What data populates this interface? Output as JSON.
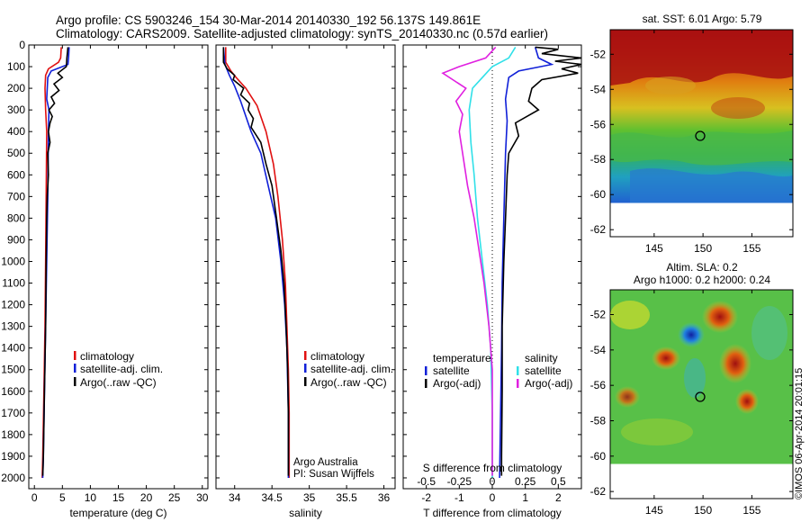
{
  "header": {
    "line1": "Argo profile: CS 5903246_154 30-Mar-2014 20140330_192 56.137S 149.861E",
    "line2": "Climatology: CARS2009. Satellite-adjusted climatology: synTS_20140330.nc (0.57d earlier)"
  },
  "colors": {
    "climatology": "#e01010",
    "satellite": "#1020d8",
    "argo": "#000000",
    "sal_satellite": "#30e0e8",
    "sal_argo": "#e020e0"
  },
  "chart_data": [
    {
      "id": "temperature",
      "type": "line",
      "xlabel": "temperature (deg C)",
      "xlim": [
        -1,
        31
      ],
      "xticks": [
        0,
        5,
        10,
        15,
        20,
        25,
        30
      ],
      "ylim": [
        2050,
        0
      ],
      "yticks": [
        0,
        100,
        200,
        300,
        400,
        500,
        600,
        700,
        800,
        900,
        1000,
        1100,
        1200,
        1300,
        1400,
        1500,
        1600,
        1700,
        1800,
        1900,
        2000
      ],
      "legend": [
        "climatology",
        "satellite-adj. clim.",
        "Argo(..raw -QC)"
      ],
      "series": [
        {
          "name": "climatology",
          "color": "#e01010",
          "points": [
            [
              4.8,
              10
            ],
            [
              4.7,
              60
            ],
            [
              4.3,
              80
            ],
            [
              2.5,
              110
            ],
            [
              2.0,
              140
            ],
            [
              1.9,
              200
            ],
            [
              2.0,
              300
            ],
            [
              2.2,
              400
            ],
            [
              2.1,
              700
            ],
            [
              2.0,
              1000
            ],
            [
              1.9,
              1300
            ],
            [
              1.7,
              1600
            ],
            [
              1.5,
              1900
            ],
            [
              1.4,
              2000
            ]
          ]
        },
        {
          "name": "satellite-adj. clim.",
          "color": "#1020d8",
          "points": [
            [
              6.2,
              10
            ],
            [
              6.1,
              60
            ],
            [
              6.0,
              90
            ],
            [
              3.0,
              120
            ],
            [
              2.4,
              150
            ],
            [
              2.2,
              250
            ],
            [
              2.6,
              300
            ],
            [
              2.5,
              400
            ],
            [
              2.4,
              700
            ],
            [
              2.2,
              1000
            ],
            [
              2.0,
              1300
            ],
            [
              1.8,
              1600
            ],
            [
              1.6,
              1900
            ],
            [
              1.5,
              2000
            ]
          ]
        },
        {
          "name": "Argo(..raw -QC)",
          "color": "#000000",
          "points": [
            [
              6.0,
              10
            ],
            [
              5.8,
              60
            ],
            [
              5.7,
              100
            ],
            [
              4.2,
              130
            ],
            [
              5.0,
              150
            ],
            [
              3.5,
              180
            ],
            [
              4.4,
              210
            ],
            [
              3.0,
              240
            ],
            [
              3.6,
              270
            ],
            [
              2.6,
              300
            ],
            [
              3.2,
              330
            ],
            [
              2.8,
              360
            ],
            [
              2.5,
              400
            ],
            [
              2.8,
              450
            ],
            [
              2.4,
              500
            ],
            [
              2.5,
              600
            ],
            [
              2.3,
              700
            ],
            [
              2.2,
              800
            ],
            [
              2.1,
              1000
            ],
            [
              2.0,
              1300
            ],
            [
              1.8,
              1600
            ],
            [
              1.6,
              1900
            ],
            [
              1.5,
              1990
            ]
          ]
        }
      ]
    },
    {
      "id": "salinity",
      "type": "line",
      "xlabel": "salinity",
      "xlim": [
        33.75,
        36.15
      ],
      "xticks": [
        34,
        34.5,
        35,
        35.5,
        36
      ],
      "ylim": [
        2050,
        0
      ],
      "legend": [
        "climatology",
        "satellite-adj. clim.",
        "Argo(..raw -QC)"
      ],
      "annotation": [
        "Argo Australia",
        "PI: Susan Wijffels"
      ],
      "series": [
        {
          "name": "climatology",
          "color": "#e01010",
          "points": [
            [
              33.88,
              10
            ],
            [
              33.88,
              80
            ],
            [
              33.95,
              120
            ],
            [
              34.02,
              150
            ],
            [
              34.15,
              200
            ],
            [
              34.3,
              280
            ],
            [
              34.42,
              400
            ],
            [
              34.52,
              550
            ],
            [
              34.58,
              700
            ],
            [
              34.64,
              900
            ],
            [
              34.68,
              1100
            ],
            [
              34.7,
              1300
            ],
            [
              34.72,
              1500
            ],
            [
              34.73,
              1700
            ],
            [
              34.73,
              2000
            ]
          ]
        },
        {
          "name": "satellite-adj. clim.",
          "color": "#1020d8",
          "points": [
            [
              33.85,
              10
            ],
            [
              33.87,
              90
            ],
            [
              33.93,
              140
            ],
            [
              34.0,
              190
            ],
            [
              34.08,
              260
            ],
            [
              34.15,
              330
            ],
            [
              34.22,
              400
            ],
            [
              34.35,
              500
            ],
            [
              34.45,
              650
            ],
            [
              34.55,
              800
            ],
            [
              34.62,
              1000
            ],
            [
              34.67,
              1200
            ],
            [
              34.7,
              1400
            ],
            [
              34.72,
              1700
            ],
            [
              34.72,
              2000
            ]
          ]
        },
        {
          "name": "Argo(..raw -QC)",
          "color": "#000000",
          "points": [
            [
              33.85,
              10
            ],
            [
              33.85,
              80
            ],
            [
              33.9,
              110
            ],
            [
              34.0,
              140
            ],
            [
              33.98,
              160
            ],
            [
              34.12,
              200
            ],
            [
              34.08,
              230
            ],
            [
              34.2,
              270
            ],
            [
              34.18,
              300
            ],
            [
              34.25,
              340
            ],
            [
              34.22,
              380
            ],
            [
              34.35,
              450
            ],
            [
              34.42,
              550
            ],
            [
              34.5,
              650
            ],
            [
              34.56,
              800
            ],
            [
              34.62,
              950
            ],
            [
              34.66,
              1100
            ],
            [
              34.69,
              1300
            ],
            [
              34.71,
              1500
            ],
            [
              34.72,
              1700
            ],
            [
              34.72,
              1990
            ]
          ]
        }
      ]
    },
    {
      "id": "difference",
      "type": "line",
      "xlabel": "T difference from climatology",
      "xlabel_top": "S difference from climatology",
      "xlim": [
        -2.7,
        2.7
      ],
      "xticks": [
        -2,
        -1,
        0,
        1,
        2
      ],
      "xticks_top": [
        "-0.5",
        "-0.25",
        "0",
        "0.25",
        "0.5"
      ],
      "xticks_top_pos": [
        -2,
        -1,
        0,
        1,
        2
      ],
      "ylim": [
        2050,
        0
      ],
      "legend_headers": [
        "temperature",
        "salinity"
      ],
      "legend": [
        [
          "satellite",
          "Argo(-adj)"
        ],
        [
          "satellite",
          "Argo(-adj)"
        ]
      ],
      "series": [
        {
          "name": "satellite",
          "group": "temperature",
          "color": "#1020d8",
          "points": [
            [
              1.3,
              10
            ],
            [
              1.4,
              60
            ],
            [
              1.8,
              90
            ],
            [
              0.8,
              120
            ],
            [
              0.5,
              150
            ],
            [
              0.4,
              250
            ],
            [
              0.45,
              350
            ],
            [
              0.4,
              500
            ],
            [
              0.35,
              800
            ],
            [
              0.3,
              1100
            ],
            [
              0.28,
              1400
            ],
            [
              0.25,
              1700
            ],
            [
              0.22,
              2000
            ]
          ]
        },
        {
          "name": "Argo(-adj)",
          "group": "temperature",
          "color": "#000000",
          "points": [
            [
              1.3,
              10
            ],
            [
              2.0,
              20
            ],
            [
              1.5,
              40
            ],
            [
              2.7,
              60
            ],
            [
              1.9,
              75
            ],
            [
              2.7,
              90
            ],
            [
              2.1,
              110
            ],
            [
              2.6,
              130
            ],
            [
              1.5,
              160
            ],
            [
              1.2,
              200
            ],
            [
              1.1,
              260
            ],
            [
              1.4,
              300
            ],
            [
              0.7,
              360
            ],
            [
              0.8,
              420
            ],
            [
              0.5,
              500
            ],
            [
              0.45,
              600
            ],
            [
              0.4,
              800
            ],
            [
              0.35,
              1000
            ],
            [
              0.3,
              1300
            ],
            [
              0.3,
              1600
            ],
            [
              0.28,
              1900
            ],
            [
              0.28,
              1990
            ]
          ]
        },
        {
          "name": "satellite",
          "group": "salinity",
          "color": "#30e0e8",
          "points": [
            [
              0.7,
              10
            ],
            [
              0.5,
              60
            ],
            [
              0.0,
              100
            ],
            [
              -0.3,
              150
            ],
            [
              -0.6,
              200
            ],
            [
              -0.7,
              300
            ],
            [
              -0.65,
              450
            ],
            [
              -0.55,
              600
            ],
            [
              -0.45,
              800
            ],
            [
              -0.3,
              1000
            ],
            [
              -0.15,
              1200
            ],
            [
              -0.05,
              1400
            ],
            [
              0.0,
              1700
            ],
            [
              0.0,
              2000
            ]
          ]
        },
        {
          "name": "Argo(-adj)",
          "group": "salinity",
          "color": "#e020e0",
          "points": [
            [
              0.1,
              10
            ],
            [
              -0.2,
              60
            ],
            [
              -1.0,
              100
            ],
            [
              -1.5,
              130
            ],
            [
              -1.2,
              160
            ],
            [
              -0.8,
              200
            ],
            [
              -1.1,
              260
            ],
            [
              -0.9,
              320
            ],
            [
              -1.0,
              400
            ],
            [
              -0.9,
              500
            ],
            [
              -0.75,
              650
            ],
            [
              -0.55,
              800
            ],
            [
              -0.4,
              950
            ],
            [
              -0.25,
              1100
            ],
            [
              -0.1,
              1300
            ],
            [
              0.0,
              1500
            ],
            [
              0.0,
              1990
            ]
          ]
        }
      ]
    }
  ],
  "maps": [
    {
      "id": "sst-map",
      "title": [
        "sat. SST: 6.01  Argo: 5.79"
      ],
      "xticks": [
        "145",
        "150",
        "155"
      ],
      "xtick_vals": [
        145,
        150,
        155
      ],
      "yticks": [
        "-52",
        "-54",
        "-56",
        "-58",
        "-60",
        "-62"
      ],
      "ytick_vals": [
        -52,
        -54,
        -56,
        -58,
        -60,
        -62
      ],
      "xlim": [
        140.5,
        159.2
      ],
      "ylim": [
        -62.4,
        -50.6
      ],
      "data_bottom_lat": -60,
      "argo_position": [
        149.861,
        -56.137
      ]
    },
    {
      "id": "sla-map",
      "title": [
        "Altim. SLA: 0.2",
        "Argo h1000: 0.2  h2000: 0.24"
      ],
      "xticks": [
        "145",
        "150",
        "155"
      ],
      "xtick_vals": [
        145,
        150,
        155
      ],
      "yticks": [
        "-52",
        "-54",
        "-56",
        "-58",
        "-60",
        "-62"
      ],
      "ytick_vals": [
        -52,
        -54,
        -56,
        -58,
        -60,
        -62
      ],
      "xlim": [
        140.5,
        159.2
      ],
      "ylim": [
        -62.4,
        -50.6
      ],
      "data_bottom_lat": -60,
      "argo_position": [
        149.861,
        -56.137
      ],
      "side_label": "©IMOS 06-Apr-2014 20:01:15"
    }
  ]
}
